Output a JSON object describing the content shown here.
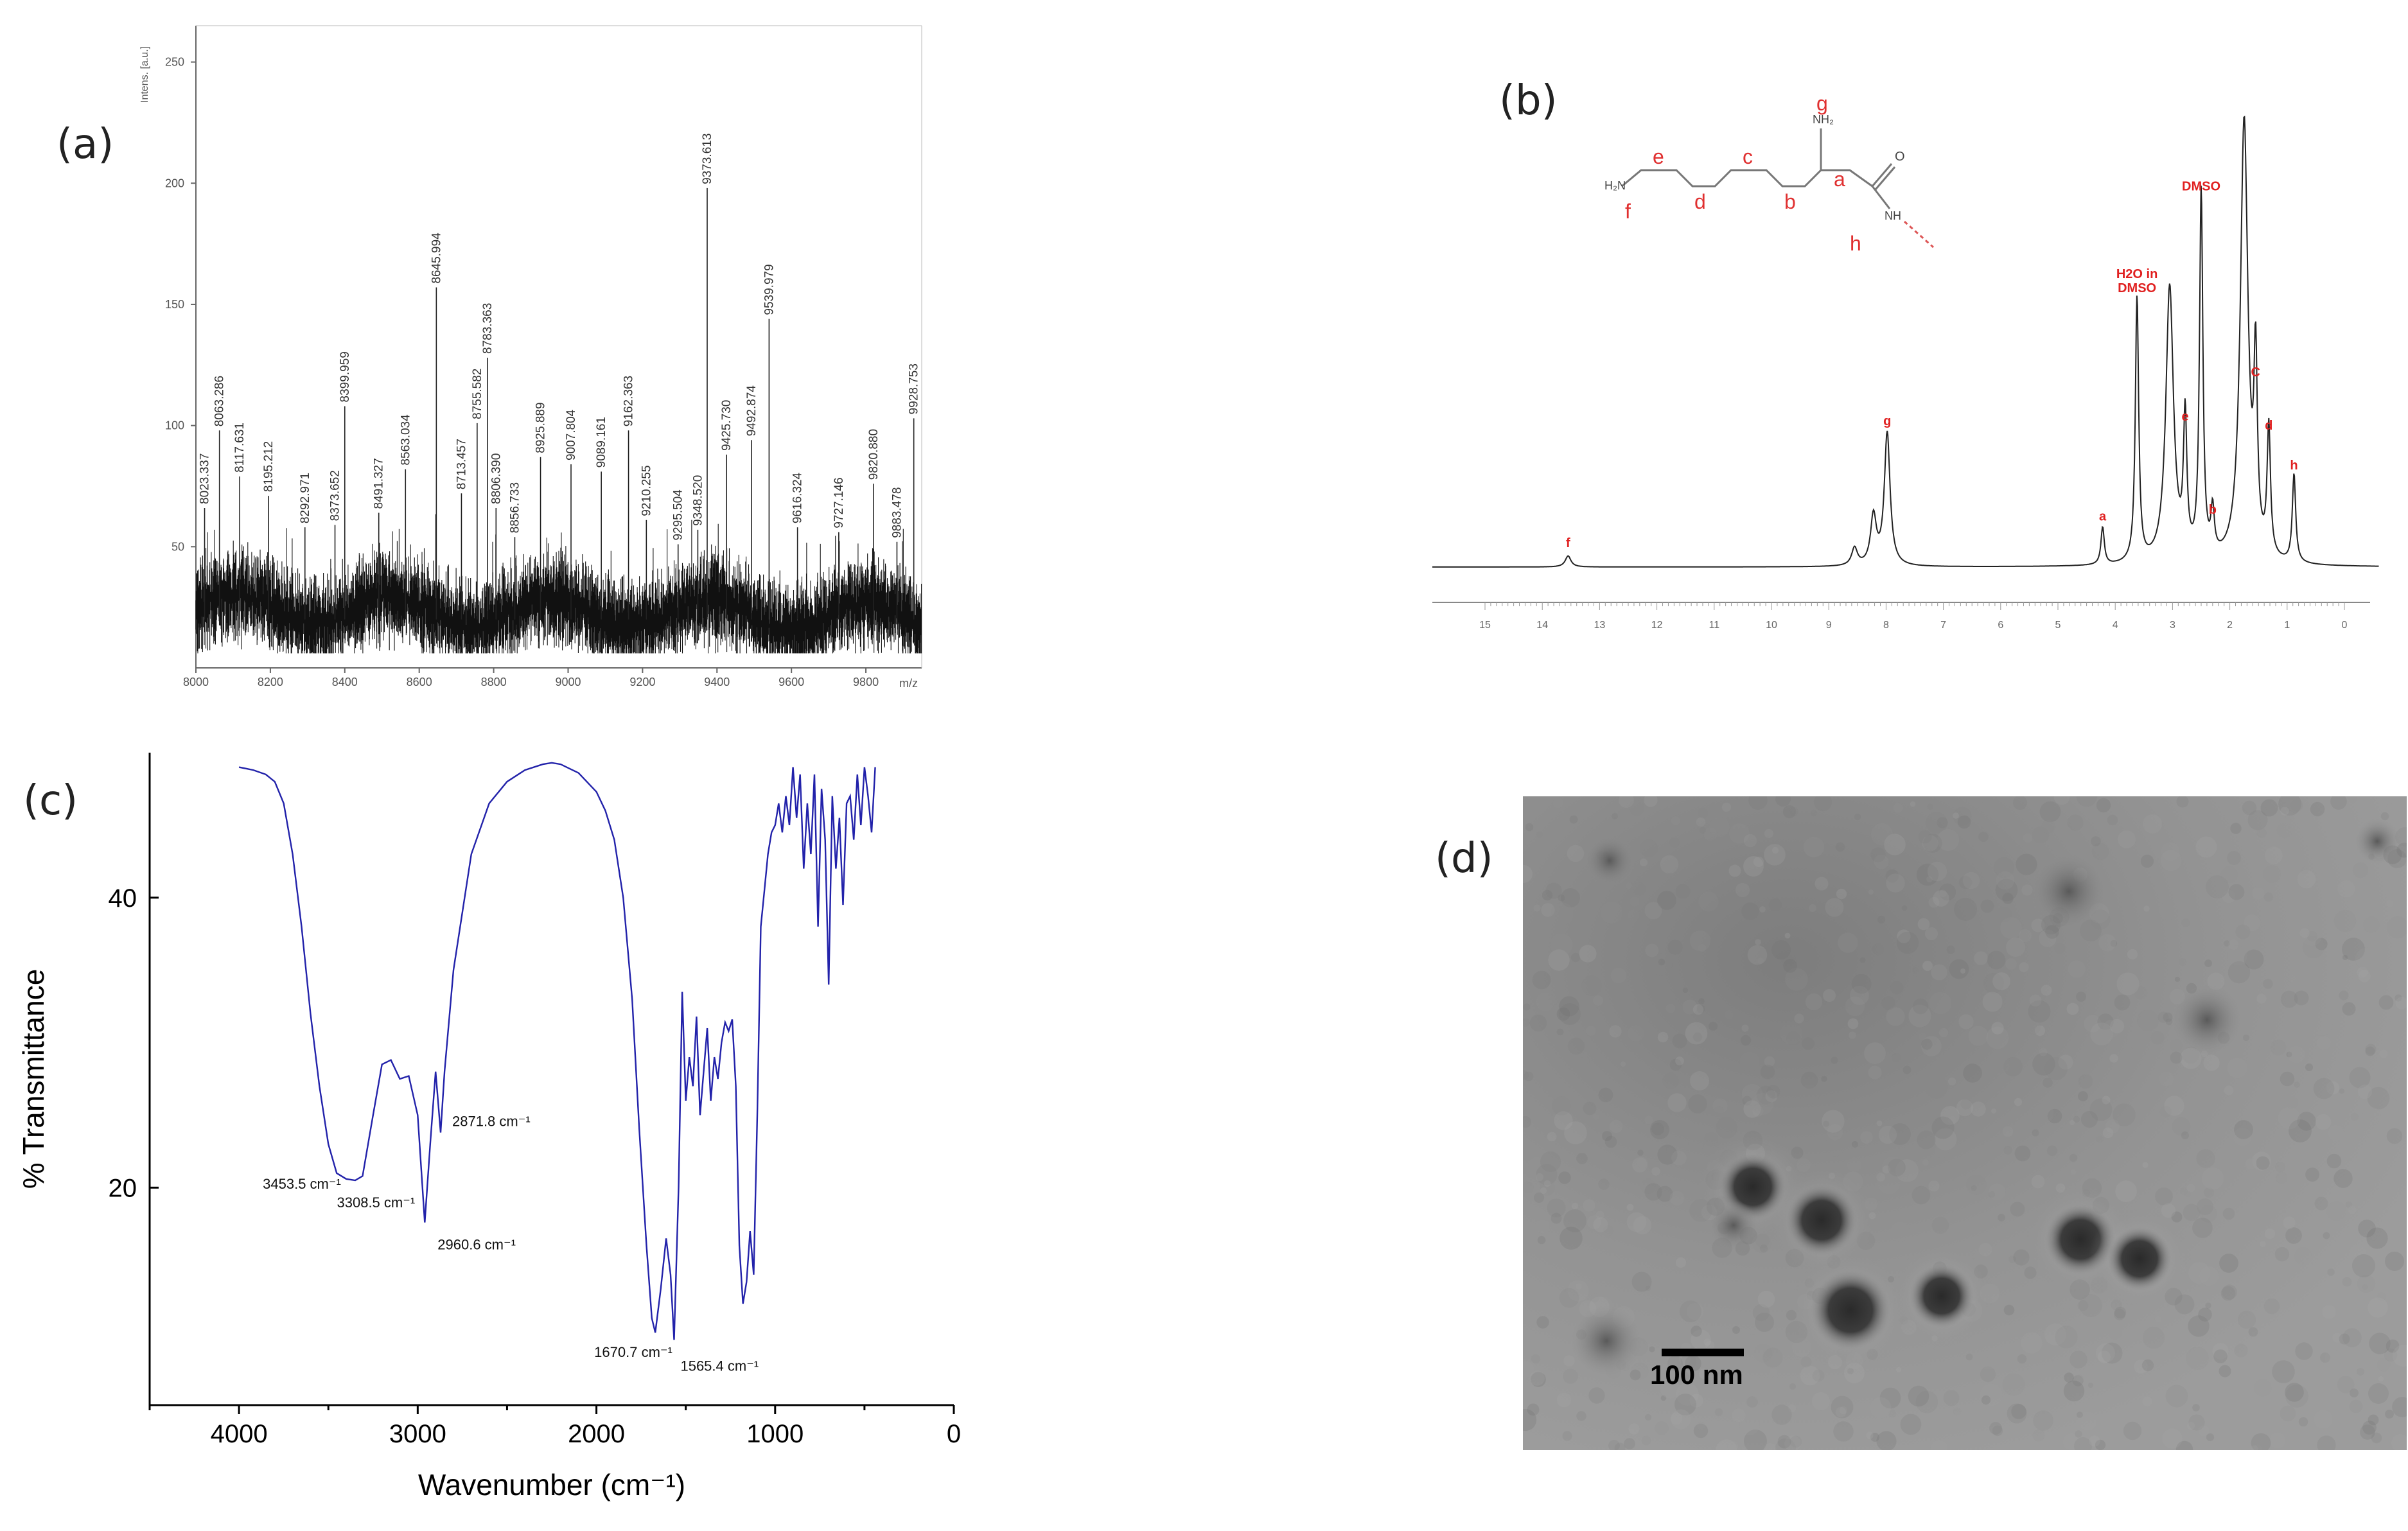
{
  "panels": {
    "a": "(a)",
    "b": "(b)",
    "c": "(c)",
    "d": "(d)"
  },
  "chart_data": [
    {
      "id": "a",
      "type": "line",
      "ylabel": "Intens. [a.u.]",
      "xlabel": "m/z",
      "xlim": [
        8000,
        9950
      ],
      "ylim": [
        0,
        265
      ],
      "xticks": [
        8000,
        8200,
        8400,
        8600,
        8800,
        9000,
        9200,
        9400,
        9600,
        9800
      ],
      "yticks": [
        50,
        100,
        150,
        200,
        250
      ],
      "noise_level": 25,
      "peaks": [
        {
          "x": 8023.337,
          "y": 66,
          "label": "8023.337"
        },
        {
          "x": 8063.286,
          "y": 98,
          "label": "8063.286"
        },
        {
          "x": 8117.631,
          "y": 79,
          "label": "8117.631"
        },
        {
          "x": 8195.212,
          "y": 71,
          "label": "8195.212"
        },
        {
          "x": 8292.971,
          "y": 58,
          "label": "8292.971"
        },
        {
          "x": 8373.652,
          "y": 59,
          "label": "8373.652"
        },
        {
          "x": 8399.959,
          "y": 108,
          "label": "8399.959"
        },
        {
          "x": 8491.327,
          "y": 64,
          "label": "8491.327"
        },
        {
          "x": 8563.034,
          "y": 82,
          "label": "8563.034"
        },
        {
          "x": 8645.994,
          "y": 157,
          "label": "8645.994"
        },
        {
          "x": 8713.457,
          "y": 72,
          "label": "8713.457"
        },
        {
          "x": 8755.582,
          "y": 101,
          "label": "8755.582"
        },
        {
          "x": 8783.363,
          "y": 128,
          "label": "8783.363"
        },
        {
          "x": 8806.39,
          "y": 66,
          "label": "8806.390"
        },
        {
          "x": 8856.733,
          "y": 54,
          "label": "8856.733"
        },
        {
          "x": 8925.889,
          "y": 87,
          "label": "8925.889"
        },
        {
          "x": 9007.804,
          "y": 84,
          "label": "9007.804"
        },
        {
          "x": 9089.161,
          "y": 81,
          "label": "9089.161"
        },
        {
          "x": 9162.363,
          "y": 98,
          "label": "9162.363"
        },
        {
          "x": 9210.255,
          "y": 61,
          "label": "9210.255"
        },
        {
          "x": 9295.504,
          "y": 51,
          "label": "9295.504"
        },
        {
          "x": 9348.52,
          "y": 57,
          "label": "9348.520"
        },
        {
          "x": 9373.613,
          "y": 198,
          "label": "9373.613"
        },
        {
          "x": 9425.73,
          "y": 88,
          "label": "9425.730"
        },
        {
          "x": 9492.874,
          "y": 94,
          "label": "9492.874"
        },
        {
          "x": 9539.979,
          "y": 144,
          "label": "9539.979"
        },
        {
          "x": 9616.324,
          "y": 58,
          "label": "9616.324"
        },
        {
          "x": 9727.146,
          "y": 56,
          "label": "9727.146"
        },
        {
          "x": 9820.88,
          "y": 76,
          "label": "9820.880"
        },
        {
          "x": 9883.478,
          "y": 52,
          "label": "9883.478"
        },
        {
          "x": 9928.753,
          "y": 103,
          "label": "9928.753"
        }
      ]
    },
    {
      "id": "b",
      "type": "line",
      "xlabel": "",
      "ylabel": "",
      "xlim": [
        15,
        0
      ],
      "xticks": [
        15,
        14,
        13,
        12,
        11,
        10,
        9,
        8,
        7,
        6,
        5,
        4,
        3,
        2,
        1,
        0
      ],
      "structure_text": {
        "h2n": "H₂N",
        "nh2": "NH₂",
        "nh": "NH",
        "o": "O",
        "letters": [
          "f",
          "e",
          "d",
          "c",
          "b",
          "a",
          "g",
          "h"
        ]
      },
      "peaks": [
        {
          "x": 13.55,
          "y": 0.025,
          "label": "f"
        },
        {
          "x": 8.55,
          "y": 0.04,
          "label": ""
        },
        {
          "x": 8.22,
          "y": 0.11,
          "label": ""
        },
        {
          "x": 7.98,
          "y": 0.3,
          "label": "g"
        },
        {
          "x": 4.22,
          "y": 0.085,
          "label": "a"
        },
        {
          "x": 3.62,
          "y": 0.6,
          "label": "H2O in DMSO"
        },
        {
          "x": 2.78,
          "y": 0.31,
          "label": "e"
        },
        {
          "x": 2.5,
          "y": 0.83,
          "label": "DMSO"
        },
        {
          "x": 2.3,
          "y": 0.1,
          "label": "b"
        },
        {
          "x": 1.55,
          "y": 0.41,
          "label": "C"
        },
        {
          "x": 1.32,
          "y": 0.29,
          "label": "d"
        },
        {
          "x": 0.88,
          "y": 0.2,
          "label": "h"
        }
      ]
    },
    {
      "id": "c",
      "type": "line",
      "xlabel": "Wavenumber (cm⁻¹)",
      "ylabel": "% Transmittance",
      "xlim": [
        4500,
        0
      ],
      "ylim": [
        5,
        50
      ],
      "xticks": [
        4000,
        3000,
        2000,
        1000,
        0
      ],
      "yticks": [
        20,
        40
      ],
      "series": [
        {
          "x": [
            4000,
            3920,
            3850,
            3800,
            3750,
            3700,
            3650,
            3600,
            3550,
            3500,
            3453.5,
            3400,
            3350,
            3308.5,
            3250,
            3200,
            3150,
            3100,
            3050,
            3000,
            2960.6,
            2930,
            2900,
            2871.8,
            2850,
            2800,
            2700,
            2600,
            2500,
            2400,
            2300,
            2250,
            2200,
            2100,
            2000,
            1950,
            1900,
            1850,
            1800,
            1760,
            1720,
            1690,
            1670.7,
            1640,
            1610,
            1585,
            1565.4,
            1540,
            1520,
            1500,
            1480,
            1460,
            1440,
            1420,
            1400,
            1380,
            1360,
            1340,
            1320,
            1300,
            1280,
            1260,
            1240,
            1220,
            1200,
            1180,
            1160,
            1140,
            1120,
            1100,
            1080,
            1060,
            1040,
            1020,
            1000,
            980,
            960,
            940,
            920,
            900,
            880,
            860,
            840,
            820,
            800,
            780,
            760,
            740,
            720,
            700,
            680,
            660,
            640,
            620,
            600,
            580,
            560,
            540,
            520,
            500,
            480,
            460,
            440
          ],
          "y": [
            49,
            48.8,
            48.5,
            48.0,
            46.5,
            43,
            38,
            32,
            27,
            23,
            21,
            20.6,
            20.5,
            20.8,
            25,
            28.5,
            28.8,
            27.5,
            27.7,
            25,
            17.6,
            23,
            28,
            23.8,
            28,
            35,
            43,
            46.5,
            48,
            48.8,
            49.2,
            49.3,
            49.2,
            48.6,
            47.3,
            46,
            44,
            40,
            33,
            24,
            16,
            11,
            10,
            13,
            16.5,
            14,
            9.5,
            20,
            33.5,
            26,
            29,
            27,
            31.8,
            25,
            28,
            31,
            26,
            29,
            27.5,
            30,
            31.4,
            30.8,
            31.6,
            27,
            16,
            12,
            13.5,
            17,
            14,
            25,
            38,
            40.5,
            43,
            44.5,
            45,
            46.5,
            44.5,
            47,
            45,
            49,
            45.5,
            48.5,
            42,
            46.5,
            43,
            48.5,
            38,
            47.5,
            44,
            34,
            47,
            42,
            45.5,
            39.5,
            46.5,
            47,
            44,
            48.5,
            45,
            49,
            47,
            44.5,
            49
          ]
        }
      ],
      "annotations": [
        {
          "x": 3453.5,
          "y": 20.9,
          "label": "3453.5 cm⁻¹"
        },
        {
          "x": 3308.5,
          "y": 20.5,
          "label": "3308.5 cm⁻¹"
        },
        {
          "x": 2960.6,
          "y": 17.6,
          "label": "2960.6 cm⁻¹"
        },
        {
          "x": 2871.8,
          "y": 23.8,
          "label": "2871.8 cm⁻¹"
        },
        {
          "x": 1670.7,
          "y": 10,
          "label": "1670.7 cm⁻¹"
        },
        {
          "x": 1565.4,
          "y": 9.5,
          "label": "1565.4 cm⁻¹"
        }
      ]
    }
  ],
  "tem": {
    "scale_bar_label": "100 nm"
  }
}
